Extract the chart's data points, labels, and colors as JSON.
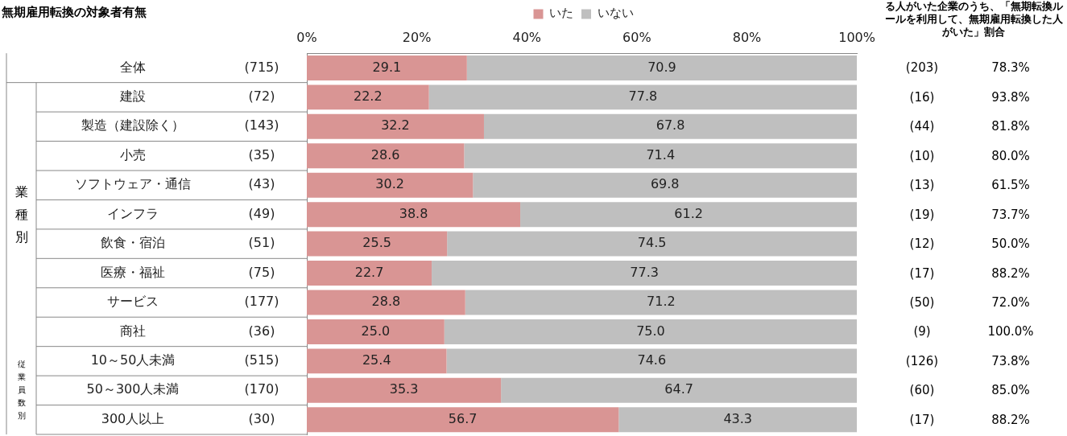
{
  "chart_data": [
    {
      "type": "bar",
      "orientation": "horizontal",
      "stacked": true,
      "title": "無期雇用転換の対象者有無",
      "categories": [
        "全体",
        "建設",
        "製造（建設除く）",
        "小売",
        "ソフトウェア・通信",
        "インフラ",
        "飲食・宿泊",
        "医療・福祉",
        "サービス",
        "商社",
        "10～50人未満",
        "50～300人未満",
        "300人以上"
      ],
      "series": [
        {
          "name": "いた",
          "color": "#d99594",
          "values": [
            29.1,
            22.2,
            32.2,
            28.6,
            30.2,
            38.8,
            25.5,
            22.7,
            28.8,
            25.0,
            25.4,
            35.3,
            56.7
          ],
          "value_labels": [
            "29.1",
            "22.2",
            "32.2",
            "28.6",
            "30.2",
            "38.8",
            "25.5",
            "22.7",
            "28.8",
            "25.0",
            "25.4",
            "35.3",
            "56.7"
          ]
        },
        {
          "name": "いない",
          "color": "#bfbfbf",
          "values": [
            70.9,
            77.8,
            67.8,
            71.4,
            69.8,
            61.2,
            74.5,
            77.3,
            71.2,
            75.0,
            74.6,
            64.7,
            43.3
          ],
          "value_labels": [
            "70.9",
            "77.8",
            "67.8",
            "71.4",
            "69.8",
            "61.2",
            "74.5",
            "77.3",
            "71.2",
            "75.0",
            "74.6",
            "64.7",
            "43.3"
          ]
        }
      ],
      "xlim": [
        0,
        100
      ],
      "xticks": [
        {
          "value": 0,
          "label": "0%"
        },
        {
          "value": 20,
          "label": "20%"
        },
        {
          "value": 40,
          "label": "40%"
        },
        {
          "value": 60,
          "label": "60%"
        },
        {
          "value": 80,
          "label": "80%"
        },
        {
          "value": 100,
          "label": "100%"
        }
      ],
      "grid": false,
      "legend": "top",
      "annotations": [
        "業種別",
        "従業員数別",
        "(715)",
        "(72)",
        "(143)",
        "(35)",
        "(43)",
        "(49)",
        "(51)",
        "(75)",
        "(177)",
        "(36)",
        "(515)",
        "(170)",
        "(30)"
      ]
    },
    {
      "type": "other",
      "title": "る人がいた企業のうち、「無期転換ルールを利用して、無期雇用転換した人がいた」割合",
      "annotations": [
        "(203)",
        "78.3%",
        "(16)",
        "93.8%",
        "(44)",
        "81.8%",
        "(10)",
        "80.0%",
        "(13)",
        "61.5%",
        "(19)",
        "73.7%",
        "(12)",
        "50.0%",
        "(17)",
        "88.2%",
        "(50)",
        "72.0%",
        "(9)",
        "100.0%",
        "(126)",
        "73.8%",
        "(60)",
        "85.0%",
        "(17)",
        "88.2%"
      ]
    }
  ]
}
